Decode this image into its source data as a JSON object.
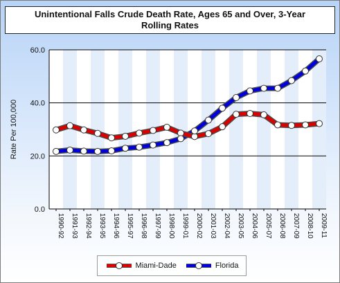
{
  "chart_data": {
    "type": "line",
    "title": "Unintentional Falls Crude Death Rate, Ages 65 and Over, 3-Year Rolling Rates",
    "xlabel": "",
    "ylabel": "Rate Per 100,000",
    "ylim": [
      0,
      60
    ],
    "yticks": [
      "0.0",
      "20.0",
      "40.0",
      "60.0"
    ],
    "categories": [
      "1990-92",
      "1991-93",
      "1992-94",
      "1993-95",
      "1994-96",
      "1995-97",
      "1996-98",
      "1997-99",
      "1998-00",
      "1999-01",
      "2000-02",
      "2001-03",
      "2002-04",
      "2003-05",
      "2004-06",
      "2005-07",
      "2006-08",
      "2007-09",
      "2008-10",
      "2009-11"
    ],
    "series": [
      {
        "name": "Miami-Dade",
        "color": "#dd0000",
        "values": [
          29.8,
          31.4,
          29.8,
          28.5,
          26.8,
          27.4,
          28.6,
          29.6,
          30.8,
          28.6,
          27.3,
          28.4,
          31.0,
          35.7,
          36.0,
          35.5,
          31.7,
          31.5,
          31.7,
          32.2
        ]
      },
      {
        "name": "Florida",
        "color": "#0000dd",
        "values": [
          21.7,
          22.2,
          21.8,
          21.7,
          21.9,
          22.9,
          23.3,
          24.1,
          25.0,
          26.5,
          29.4,
          33.5,
          38.0,
          42.0,
          44.5,
          45.5,
          45.5,
          48.4,
          52.0,
          56.6
        ]
      }
    ],
    "grid": true,
    "legend_position": "bottom"
  }
}
